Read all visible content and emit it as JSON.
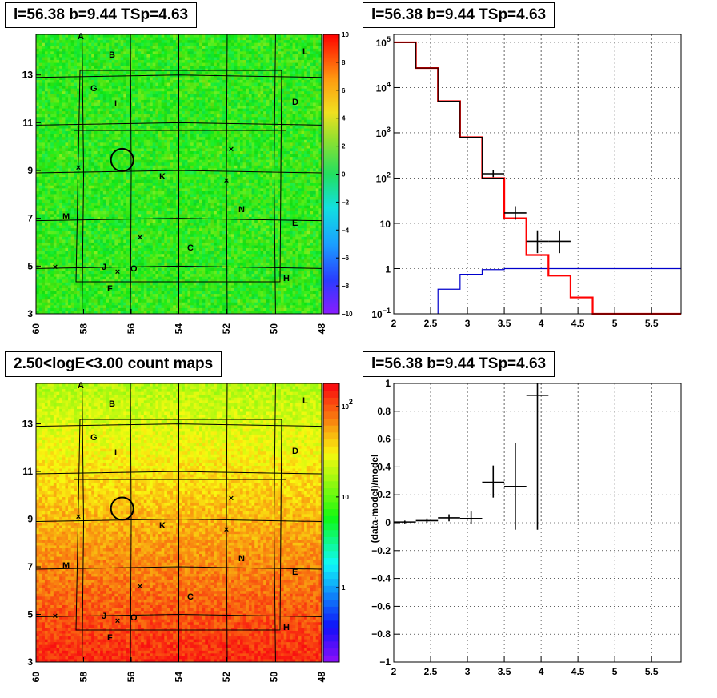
{
  "panels": {
    "tl_title": "l=56.38 b=9.44 TSp=4.63",
    "tr_title": "l=56.38 b=9.44 TSp=4.63",
    "bl_title": "2.50<logE<3.00 count maps",
    "br_title": "l=56.38 b=9.44 TSp=4.63"
  },
  "colors": {
    "model": "#ff0000",
    "component": "#0000cc",
    "data": "#000000"
  },
  "chart_data": [
    {
      "type": "heatmap",
      "title": "l=56.38 b=9.44 TSp=4.63",
      "x_ticks": [
        "60",
        "58",
        "56",
        "54",
        "52",
        "50",
        "48"
      ],
      "y_ticks": [
        "3",
        "5",
        "7",
        "9",
        "11",
        "13"
      ],
      "xlim": [
        60,
        48
      ],
      "ylim": [
        3,
        14.7
      ],
      "colorbar_ticks": [
        "10",
        "8",
        "6",
        "4",
        "2",
        "0",
        "-2",
        "-4",
        "-6",
        "-8",
        "-10"
      ],
      "zlim": [
        -10,
        10
      ],
      "source_labels": [
        "A",
        "B",
        "L",
        "G",
        "I",
        "D",
        "K",
        "N",
        "M",
        "E",
        "C",
        "J",
        "O",
        "H",
        "F"
      ],
      "circle_center": [
        56.38,
        9.44
      ]
    },
    {
      "type": "line",
      "title": "l=56.38 b=9.44 TSp=4.63",
      "xlim": [
        2,
        5.9
      ],
      "ylog": true,
      "ylim": [
        0.1,
        150000
      ],
      "x_ticks": [
        "2",
        "2.5",
        "3",
        "3.5",
        "4",
        "4.5",
        "5",
        "5.5"
      ],
      "y_ticks": [
        {
          "v": 0.1,
          "base": "10",
          "exp": "−1"
        },
        {
          "v": 1,
          "base": "1",
          "exp": ""
        },
        {
          "v": 10,
          "base": "10",
          "exp": ""
        },
        {
          "v": 100,
          "base": "10",
          "exp": "2"
        },
        {
          "v": 1000,
          "base": "10",
          "exp": "3"
        },
        {
          "v": 10000,
          "base": "10",
          "exp": "4"
        },
        {
          "v": 100000,
          "base": "10",
          "exp": "5"
        }
      ],
      "model_edges": [
        2,
        2.3,
        2.6,
        2.9,
        3.2,
        3.5,
        3.8,
        4.1,
        4.4,
        4.7,
        5.9
      ],
      "model_values": [
        100000,
        27000,
        5000,
        800,
        100,
        13,
        2,
        0.7,
        0.23,
        0.1
      ],
      "data_points": [
        {
          "x": 3.35,
          "xerr": 0.15,
          "y": 125,
          "ylo": 105,
          "yhi": 148
        },
        {
          "x": 3.65,
          "xerr": 0.15,
          "y": 17,
          "ylo": 12,
          "yhi": 24
        },
        {
          "x": 3.95,
          "xerr": 0.15,
          "y": 4,
          "ylo": 2.2,
          "yhi": 7
        },
        {
          "x": 4.25,
          "xerr": 0.15,
          "y": 4,
          "ylo": 2.2,
          "yhi": 7
        }
      ],
      "component_edges": [
        2.6,
        2.9,
        3.2,
        3.5,
        5.9
      ],
      "component_values": [
        0.35,
        0.75,
        0.95,
        1.0
      ]
    },
    {
      "type": "heatmap",
      "title": "2.50<logE<3.00 count maps",
      "x_ticks": [
        "60",
        "58",
        "56",
        "54",
        "52",
        "50",
        "48"
      ],
      "y_ticks": [
        "3",
        "5",
        "7",
        "9",
        "11",
        "13"
      ],
      "xlim": [
        60,
        48
      ],
      "ylim": [
        3,
        14.7
      ],
      "colorbar_ticks": [
        {
          "v": 1,
          "base": "1",
          "exp": ""
        },
        {
          "v": 10,
          "base": "10",
          "exp": ""
        },
        {
          "v": 100,
          "base": "10",
          "exp": "2"
        }
      ],
      "zlog": true,
      "zlim": [
        0.15,
        180
      ],
      "source_labels": [
        "A",
        "B",
        "L",
        "G",
        "I",
        "D",
        "K",
        "N",
        "M",
        "E",
        "C",
        "J",
        "O",
        "H",
        "F"
      ],
      "circle_center": [
        56.38,
        9.44
      ]
    },
    {
      "type": "scatter",
      "title": "l=56.38 b=9.44 TSp=4.63",
      "ylabel": "(data-model)/model",
      "xlim": [
        2,
        5.9
      ],
      "ylim": [
        -1,
        1
      ],
      "x_ticks": [
        "2",
        "2.5",
        "3",
        "3.5",
        "4",
        "4.5",
        "5",
        "5.5"
      ],
      "y_ticks": [
        "−1",
        "−0.8",
        "−0.6",
        "−0.4",
        "−0.2",
        "0",
        "0.2",
        "0.4",
        "0.6",
        "0.8",
        "1"
      ],
      "points": [
        {
          "x": 2.15,
          "xerr": 0.15,
          "y": 0.005,
          "ylo": -0.005,
          "yhi": 0.015
        },
        {
          "x": 2.45,
          "xerr": 0.15,
          "y": 0.015,
          "ylo": 0.0,
          "yhi": 0.03
        },
        {
          "x": 2.75,
          "xerr": 0.15,
          "y": 0.035,
          "ylo": 0.01,
          "yhi": 0.06
        },
        {
          "x": 3.05,
          "xerr": 0.15,
          "y": 0.03,
          "ylo": -0.01,
          "yhi": 0.08
        },
        {
          "x": 3.35,
          "xerr": 0.15,
          "y": 0.29,
          "ylo": 0.18,
          "yhi": 0.41
        },
        {
          "x": 3.65,
          "xerr": 0.15,
          "y": 0.26,
          "ylo": -0.05,
          "yhi": 0.57
        },
        {
          "x": 3.95,
          "xerr": 0.15,
          "y": 0.915,
          "ylo": -0.05,
          "yhi": 1.0
        }
      ]
    }
  ]
}
